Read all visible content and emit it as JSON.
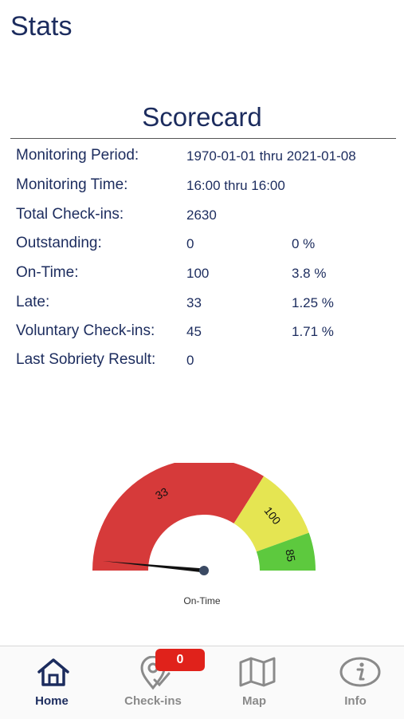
{
  "header": {
    "title": "Stats"
  },
  "scorecard": {
    "title": "Scorecard",
    "rows": [
      {
        "label": "Monitoring Period:",
        "value": "1970-01-01 thru 2021-01-08",
        "pct": ""
      },
      {
        "label": "Monitoring Time:",
        "value": "16:00 thru 16:00",
        "pct": ""
      },
      {
        "label": "Total Check-ins:",
        "value": "2630",
        "pct": ""
      },
      {
        "label": "Outstanding:",
        "value": "0",
        "pct": "0 %"
      },
      {
        "label": "On-Time:",
        "value": "100",
        "pct": "3.8 %"
      },
      {
        "label": "Late:",
        "value": "33",
        "pct": "1.25 %"
      },
      {
        "label": "Voluntary Check-ins:",
        "value": "45",
        "pct": "1.71 %"
      },
      {
        "label": "Last Sobriety Result:",
        "value": "0",
        "pct": ""
      }
    ]
  },
  "gauge": {
    "label": "On-Time",
    "segments": [
      {
        "label": "33",
        "color": "#d63a3a",
        "share": 0.68
      },
      {
        "label": "100",
        "color": "#e5e552",
        "share": 0.21
      },
      {
        "label": "85",
        "color": "#5dc93e",
        "share": 0.11
      }
    ],
    "needle_fraction": 0.03
  },
  "tabbar": {
    "tabs": [
      {
        "label": "Home",
        "icon": "home-icon",
        "active": true
      },
      {
        "label": "Check-ins",
        "icon": "checkin-pin-icon",
        "active": false
      },
      {
        "label": "Map",
        "icon": "map-icon",
        "active": false
      },
      {
        "label": "Info",
        "icon": "info-icon",
        "active": false
      }
    ],
    "checkins_badge": "0"
  }
}
